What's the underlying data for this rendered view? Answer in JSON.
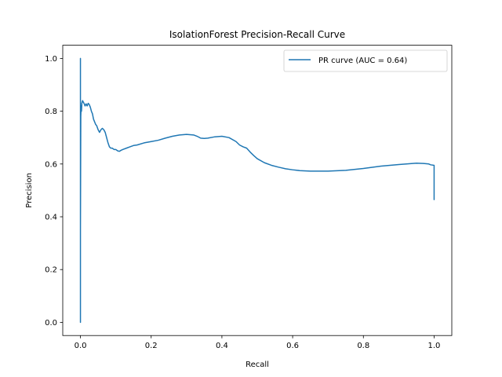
{
  "chart_data": {
    "type": "line",
    "title": "IsolationForest Precision-Recall Curve",
    "xlabel": "Recall",
    "ylabel": "Precision",
    "xlim": [
      -0.05,
      1.05
    ],
    "ylim": [
      -0.05,
      1.05
    ],
    "xticks": [
      0.0,
      0.2,
      0.4,
      0.6,
      0.8,
      1.0
    ],
    "xtick_labels": [
      "0.0",
      "0.2",
      "0.4",
      "0.6",
      "0.8",
      "1.0"
    ],
    "yticks": [
      0.0,
      0.2,
      0.4,
      0.6,
      0.8,
      1.0
    ],
    "ytick_labels": [
      "0.0",
      "0.2",
      "0.4",
      "0.6",
      "0.8",
      "1.0"
    ],
    "grid": false,
    "legend_position": "upper right",
    "series": [
      {
        "name": "PR curve (AUC = 0.64)",
        "color": "#1f77b4",
        "x": [
          0.0,
          0.0,
          0.0,
          0.001,
          0.002,
          0.003,
          0.004,
          0.006,
          0.008,
          0.01,
          0.013,
          0.016,
          0.019,
          0.022,
          0.025,
          0.028,
          0.031,
          0.034,
          0.037,
          0.04,
          0.043,
          0.046,
          0.05,
          0.054,
          0.058,
          0.062,
          0.066,
          0.07,
          0.074,
          0.078,
          0.082,
          0.086,
          0.09,
          0.095,
          0.1,
          0.105,
          0.11,
          0.115,
          0.12,
          0.13,
          0.14,
          0.15,
          0.16,
          0.18,
          0.2,
          0.22,
          0.24,
          0.26,
          0.28,
          0.3,
          0.31,
          0.32,
          0.33,
          0.34,
          0.35,
          0.36,
          0.38,
          0.4,
          0.42,
          0.44,
          0.45,
          0.46,
          0.47,
          0.48,
          0.49,
          0.5,
          0.52,
          0.54,
          0.56,
          0.58,
          0.6,
          0.62,
          0.65,
          0.7,
          0.75,
          0.8,
          0.85,
          0.9,
          0.95,
          0.97,
          0.985,
          0.99,
          1.0,
          1.0
        ],
        "y": [
          0.0,
          1.0,
          0.35,
          0.78,
          0.82,
          0.8,
          0.83,
          0.84,
          0.835,
          0.83,
          0.82,
          0.828,
          0.82,
          0.83,
          0.825,
          0.815,
          0.8,
          0.79,
          0.77,
          0.76,
          0.75,
          0.745,
          0.73,
          0.72,
          0.73,
          0.735,
          0.73,
          0.72,
          0.7,
          0.68,
          0.665,
          0.66,
          0.66,
          0.655,
          0.655,
          0.65,
          0.648,
          0.652,
          0.655,
          0.66,
          0.665,
          0.67,
          0.672,
          0.68,
          0.685,
          0.69,
          0.698,
          0.705,
          0.71,
          0.712,
          0.711,
          0.71,
          0.705,
          0.698,
          0.697,
          0.698,
          0.703,
          0.705,
          0.7,
          0.685,
          0.672,
          0.665,
          0.66,
          0.645,
          0.632,
          0.62,
          0.605,
          0.595,
          0.588,
          0.582,
          0.578,
          0.575,
          0.573,
          0.573,
          0.576,
          0.583,
          0.592,
          0.598,
          0.603,
          0.602,
          0.6,
          0.597,
          0.595,
          0.465
        ]
      }
    ]
  }
}
